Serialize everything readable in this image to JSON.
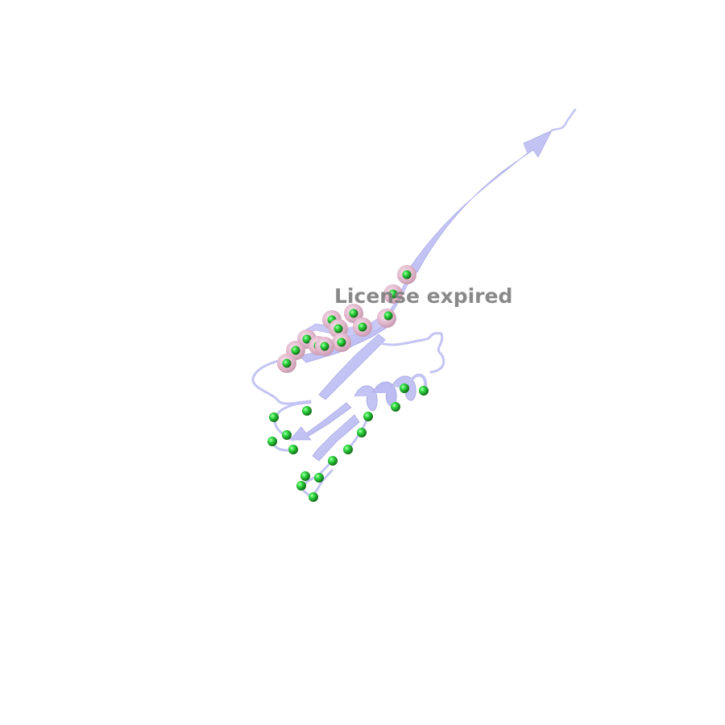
{
  "watermark": {
    "text": "License expired"
  },
  "colors": {
    "background": "#ffffff",
    "cartoon": "#c4c4f4",
    "cartoon_dark": "#a9a9e6",
    "sphere_green": "#22dd33",
    "sphere_green_dark": "#0f7a18",
    "halo_pink": "#e6b8d0",
    "watermark": "#7f7f7f"
  },
  "scene": {
    "description_visible": false,
    "highlighted_sphere_count": 17,
    "plain_sphere_count": 19
  }
}
